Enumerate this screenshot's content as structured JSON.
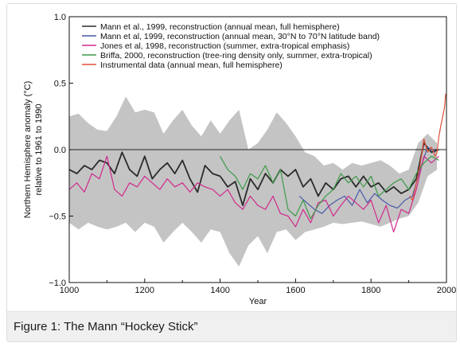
{
  "caption": "Figure 1: The Mann “Hockey Stick”",
  "chart_data": {
    "type": "line",
    "xlabel": "Year",
    "ylabel_line1": "Northern Hemisphere anomaly (°C)",
    "ylabel_line2": "relative to 1961 to 1990",
    "xlim": [
      1000,
      2000
    ],
    "ylim": [
      -1.0,
      1.0
    ],
    "xticks": [
      1000,
      1200,
      1400,
      1600,
      1800,
      2000
    ],
    "xtick_labels": [
      "1000",
      "1200",
      "1400",
      "1600",
      "1800",
      "2000"
    ],
    "yticks": [
      -1.0,
      -0.5,
      0.0,
      0.5,
      1.0
    ],
    "ytick_labels": [
      "−1.0",
      "−0.5",
      "0.0",
      "0.5",
      "1.0"
    ],
    "zero_line": 0.0,
    "grid": false,
    "legend_position": "top-left",
    "uncertainty_band": {
      "x": [
        1000,
        1025,
        1050,
        1075,
        1100,
        1125,
        1150,
        1175,
        1200,
        1225,
        1250,
        1275,
        1300,
        1325,
        1350,
        1375,
        1400,
        1425,
        1450,
        1475,
        1500,
        1525,
        1550,
        1575,
        1600,
        1625,
        1650,
        1675,
        1700,
        1725,
        1750,
        1775,
        1800,
        1825,
        1850,
        1875,
        1900,
        1925,
        1950,
        1975
      ],
      "upper": [
        0.25,
        0.27,
        0.2,
        0.15,
        0.14,
        0.25,
        0.4,
        0.28,
        0.3,
        0.28,
        0.12,
        0.22,
        0.3,
        0.18,
        0.1,
        0.22,
        0.12,
        0.22,
        0.3,
        0.0,
        0.05,
        0.15,
        0.28,
        0.2,
        0.1,
        -0.02,
        -0.05,
        -0.12,
        -0.1,
        -0.15,
        -0.1,
        -0.12,
        -0.1,
        -0.08,
        -0.12,
        -0.18,
        -0.15,
        0.05,
        0.12,
        0.05
      ],
      "lower": [
        -0.55,
        -0.6,
        -0.55,
        -0.58,
        -0.6,
        -0.58,
        -0.55,
        -0.62,
        -0.55,
        -0.58,
        -0.7,
        -0.62,
        -0.55,
        -0.62,
        -0.7,
        -0.6,
        -0.62,
        -0.78,
        -0.88,
        -0.72,
        -0.65,
        -0.78,
        -0.62,
        -0.6,
        -0.68,
        -0.62,
        -0.6,
        -0.58,
        -0.55,
        -0.56,
        -0.55,
        -0.54,
        -0.56,
        -0.58,
        -0.55,
        -0.52,
        -0.5,
        -0.4,
        -0.2,
        -0.15
      ]
    },
    "series": [
      {
        "name": "Mann et al., 1999, reconstruction (annual mean, full hemisphere)",
        "color": "#2b2b2b",
        "x": [
          1000,
          1020,
          1040,
          1060,
          1080,
          1100,
          1120,
          1140,
          1160,
          1180,
          1200,
          1220,
          1240,
          1260,
          1280,
          1300,
          1320,
          1340,
          1360,
          1380,
          1400,
          1420,
          1440,
          1460,
          1480,
          1500,
          1520,
          1540,
          1560,
          1580,
          1600,
          1620,
          1640,
          1660,
          1680,
          1700,
          1720,
          1740,
          1760,
          1780,
          1800,
          1820,
          1840,
          1860,
          1880,
          1900,
          1920,
          1940,
          1960,
          1980
        ],
        "values": [
          -0.15,
          -0.18,
          -0.12,
          -0.15,
          -0.08,
          -0.1,
          -0.18,
          -0.02,
          -0.15,
          -0.2,
          -0.05,
          -0.22,
          -0.15,
          -0.1,
          -0.18,
          -0.08,
          -0.22,
          -0.32,
          -0.12,
          -0.18,
          -0.2,
          -0.28,
          -0.24,
          -0.42,
          -0.22,
          -0.3,
          -0.18,
          -0.25,
          -0.15,
          -0.2,
          -0.15,
          -0.28,
          -0.22,
          -0.35,
          -0.25,
          -0.3,
          -0.22,
          -0.2,
          -0.28,
          -0.2,
          -0.28,
          -0.25,
          -0.32,
          -0.28,
          -0.33,
          -0.3,
          -0.22,
          0.05,
          -0.02,
          0.0
        ]
      },
      {
        "name": "Mann et al, 1999, reconstruction (annual mean, 30°N to 70°N latitude band)",
        "color": "#4a5aa8",
        "x": [
          1610,
          1630,
          1650,
          1670,
          1690,
          1710,
          1730,
          1750,
          1770,
          1790,
          1810,
          1830,
          1850,
          1870,
          1890,
          1910,
          1930,
          1950,
          1970
        ],
        "values": [
          -0.35,
          -0.4,
          -0.45,
          -0.48,
          -0.42,
          -0.38,
          -0.35,
          -0.42,
          -0.3,
          -0.4,
          -0.33,
          -0.38,
          -0.42,
          -0.44,
          -0.38,
          -0.35,
          -0.15,
          0.02,
          -0.02
        ]
      },
      {
        "name": "Jones et al, 1998, reconstruction (summer, extra-tropical emphasis)",
        "color": "#d02a8c",
        "x": [
          1000,
          1020,
          1040,
          1060,
          1080,
          1100,
          1120,
          1140,
          1160,
          1180,
          1200,
          1220,
          1240,
          1260,
          1280,
          1300,
          1320,
          1340,
          1360,
          1380,
          1400,
          1420,
          1440,
          1460,
          1480,
          1500,
          1520,
          1540,
          1560,
          1580,
          1600,
          1620,
          1640,
          1660,
          1680,
          1700,
          1720,
          1740,
          1760,
          1780,
          1800,
          1820,
          1840,
          1860,
          1880,
          1900,
          1920,
          1940,
          1960,
          1980
        ],
        "values": [
          -0.3,
          -0.25,
          -0.32,
          -0.18,
          -0.22,
          -0.05,
          -0.3,
          -0.35,
          -0.25,
          -0.28,
          -0.2,
          -0.25,
          -0.3,
          -0.22,
          -0.28,
          -0.25,
          -0.32,
          -0.25,
          -0.28,
          -0.3,
          -0.35,
          -0.3,
          -0.4,
          -0.45,
          -0.35,
          -0.42,
          -0.45,
          -0.35,
          -0.48,
          -0.5,
          -0.58,
          -0.45,
          -0.55,
          -0.4,
          -0.38,
          -0.5,
          -0.42,
          -0.35,
          -0.4,
          -0.45,
          -0.38,
          -0.55,
          -0.42,
          -0.62,
          -0.45,
          -0.48,
          -0.3,
          -0.05,
          -0.1,
          -0.05
        ]
      },
      {
        "name": "Briffa, 2000, reconstruction (tree-ring density only, summer, extra-tropical)",
        "color": "#3c9a48",
        "x": [
          1400,
          1420,
          1440,
          1460,
          1480,
          1500,
          1520,
          1540,
          1560,
          1580,
          1600,
          1620,
          1640,
          1660,
          1680,
          1700,
          1720,
          1740,
          1760,
          1780,
          1800,
          1820,
          1840,
          1860,
          1880,
          1900,
          1920,
          1940,
          1960,
          1980
        ],
        "values": [
          -0.05,
          -0.15,
          -0.2,
          -0.3,
          -0.18,
          -0.22,
          -0.12,
          -0.25,
          -0.15,
          -0.45,
          -0.5,
          -0.38,
          -0.52,
          -0.42,
          -0.35,
          -0.3,
          -0.18,
          -0.25,
          -0.2,
          -0.28,
          -0.2,
          -0.35,
          -0.3,
          -0.25,
          -0.22,
          -0.3,
          -0.18,
          -0.1,
          -0.05,
          -0.08
        ]
      },
      {
        "name": "Instrumental data (annual mean, full hemisphere)",
        "color": "#e05038",
        "x": [
          1902,
          1910,
          1920,
          1930,
          1940,
          1950,
          1960,
          1970,
          1975,
          1980,
          1985,
          1990,
          1995,
          1998
        ],
        "values": [
          -0.35,
          -0.38,
          -0.25,
          -0.12,
          0.08,
          -0.02,
          0.02,
          -0.05,
          -0.02,
          0.1,
          0.18,
          0.25,
          0.32,
          0.42
        ]
      }
    ],
    "legend_labels": [
      {
        "text": "Mann et al., 1999, reconstruction (annual mean, full hemisphere)",
        "color": "#2b2b2b"
      },
      {
        "text": "Mann et al, 1999, reconstruction (annual mean, 30°N to 70°N latitude band)",
        "color": "#4a5aa8"
      },
      {
        "text": "Jones et al, 1998, reconstruction (summer, extra-tropical emphasis)",
        "color": "#d02a8c"
      },
      {
        "text": "Briffa, 2000, reconstruction (tree-ring density only, summer, extra-tropical)",
        "color": "#3c9a48"
      },
      {
        "text": "Instrumental data (annual mean, full hemisphere)",
        "color": "#e05038"
      }
    ]
  }
}
